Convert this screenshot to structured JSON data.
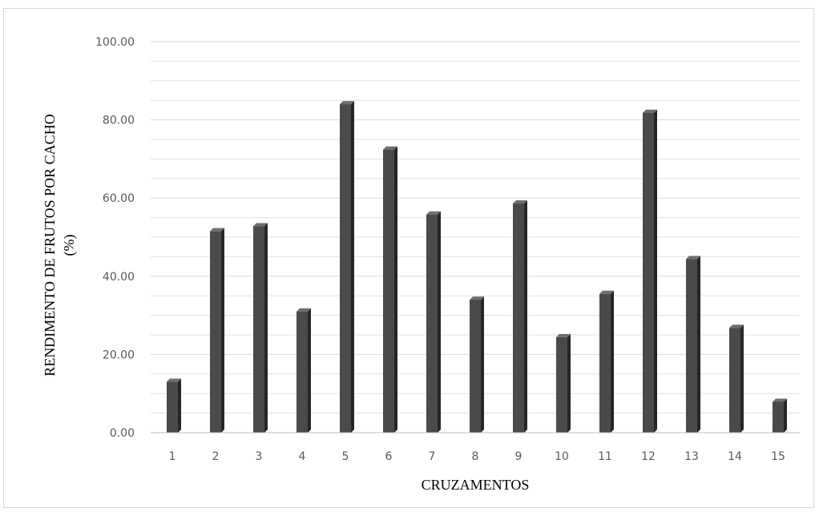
{
  "chart_data": {
    "type": "bar",
    "title": "",
    "xlabel": "CRUZAMENTOS",
    "ylabel": [
      "RENDIMENTO DE FRUTOS POR CACHO",
      "(%)"
    ],
    "categories": [
      "1",
      "2",
      "3",
      "4",
      "5",
      "6",
      "7",
      "8",
      "9",
      "10",
      "11",
      "12",
      "13",
      "14",
      "15"
    ],
    "values": [
      13.0,
      51.5,
      52.8,
      31.0,
      84.0,
      72.4,
      55.8,
      34.0,
      58.6,
      24.4,
      35.5,
      81.8,
      44.4,
      26.8,
      7.9
    ],
    "ylim": [
      0,
      100
    ],
    "yticks": [
      "0.00",
      "20.00",
      "40.00",
      "60.00",
      "80.00",
      "100.00"
    ],
    "grid": true,
    "bar_color": "#4a4a4a",
    "bar_shadow_color": "#262626",
    "gridline_color": "#e0e0e0"
  }
}
